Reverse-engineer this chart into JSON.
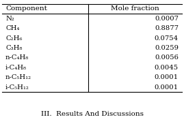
{
  "components": [
    "N₂",
    "CH₄",
    "C₂H₆",
    "C₃H₈",
    "n-C₄H₈",
    "i-C₄H₈",
    "n-C₅H₁₂",
    "i-C₅H₁₂"
  ],
  "mole_fractions": [
    "0.0007",
    "0.8877",
    "0.0754",
    "0.0259",
    "0.0056",
    "0.0045",
    "0.0001",
    "0.0001"
  ],
  "col_header_left": "Component",
  "col_header_right": "Mole fraction",
  "footer_text": "III.  Results And Discussions",
  "bg_color": "#ffffff"
}
